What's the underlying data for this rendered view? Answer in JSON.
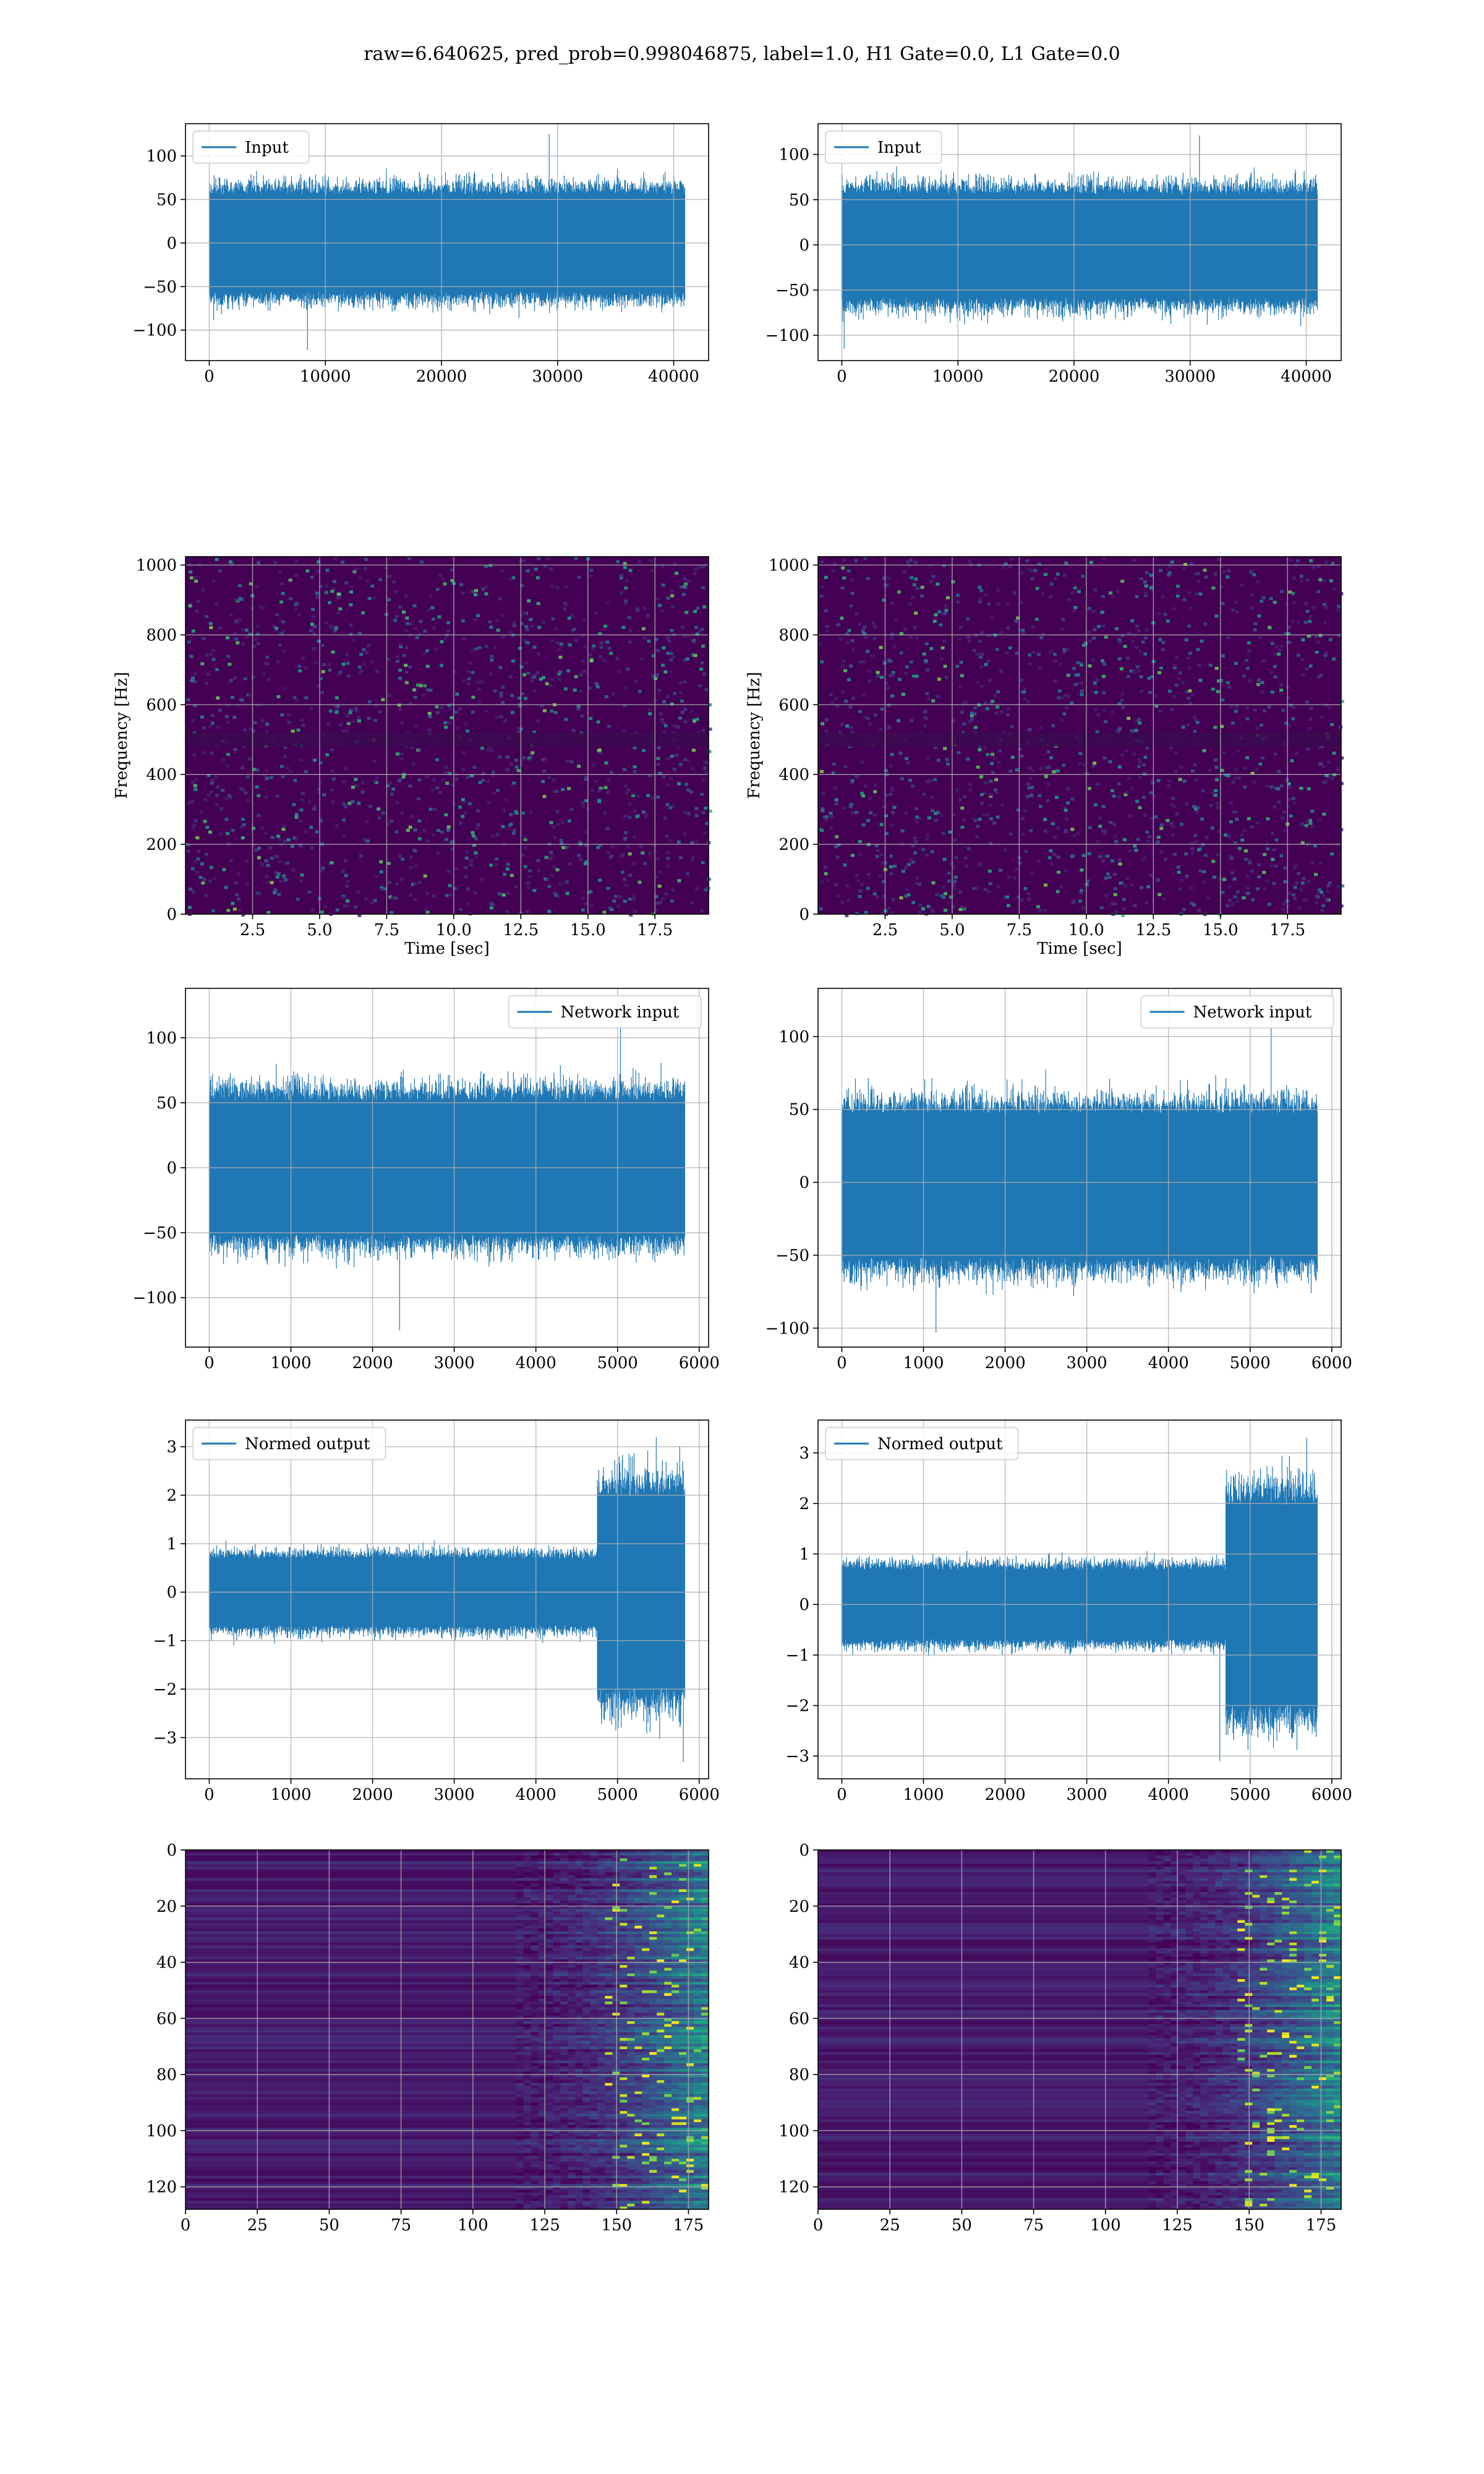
{
  "suptitle": "raw=6.640625, pred_prob=0.998046875, label=1.0, H1 Gate=0.0, L1 Gate=0.0",
  "colors": {
    "line": "#1f77b4",
    "viridis_dark": "#440154",
    "grid": "#b0b0b0",
    "frame": "#000000"
  },
  "chart_data": [
    {
      "id": "input-left",
      "type": "line",
      "legend_loc": "upper left",
      "series": [
        {
          "name": "Input",
          "n": 40960,
          "y_max": 125,
          "y_min": -123,
          "envelope": [
            65,
            -65
          ]
        }
      ],
      "xlim": [
        -2048,
        43008
      ],
      "ylim": [
        -135,
        137
      ],
      "xticks": [
        0,
        10000,
        20000,
        30000,
        40000
      ],
      "yticks": [
        -100,
        -50,
        0,
        50,
        100
      ],
      "xlabel": "",
      "ylabel": "",
      "grid": true
    },
    {
      "id": "input-right",
      "type": "line",
      "legend_loc": "upper left",
      "series": [
        {
          "name": "Input",
          "n": 40960,
          "y_max": 121,
          "y_min": -115,
          "envelope": [
            65,
            -68
          ]
        }
      ],
      "xlim": [
        -2048,
        43008
      ],
      "ylim": [
        -128,
        134
      ],
      "xticks": [
        0,
        10000,
        20000,
        30000,
        40000
      ],
      "yticks": [
        -100,
        -50,
        0,
        50,
        100
      ],
      "xlabel": "",
      "ylabel": "",
      "grid": true
    },
    {
      "id": "spectrogram-left",
      "type": "heatmap",
      "colormap": "viridis",
      "xlim": [
        0,
        19.5
      ],
      "ylim": [
        0,
        1024
      ],
      "xticks": [
        2.5,
        5.0,
        7.5,
        10.0,
        12.5,
        15.0,
        17.5
      ],
      "yticks": [
        0,
        200,
        400,
        600,
        800,
        1000
      ],
      "xlabel": "Time [sec]",
      "ylabel": "Frequency [Hz]",
      "grid": true
    },
    {
      "id": "spectrogram-right",
      "type": "heatmap",
      "colormap": "viridis",
      "xlim": [
        0,
        19.5
      ],
      "ylim": [
        0,
        1024
      ],
      "xticks": [
        2.5,
        5.0,
        7.5,
        10.0,
        12.5,
        15.0,
        17.5
      ],
      "yticks": [
        0,
        200,
        400,
        600,
        800,
        1000
      ],
      "xlabel": "Time [sec]",
      "ylabel": "Frequency [Hz]",
      "grid": true
    },
    {
      "id": "network-left",
      "type": "line",
      "legend_loc": "upper right",
      "series": [
        {
          "name": "Network input",
          "n": 5824,
          "y_max": 115,
          "y_min": -125,
          "envelope": [
            60,
            -60
          ]
        }
      ],
      "xlim": [
        -291,
        6115
      ],
      "ylim": [
        -138,
        138
      ],
      "xticks": [
        0,
        1000,
        2000,
        3000,
        4000,
        5000,
        6000
      ],
      "yticks": [
        -100,
        -50,
        0,
        50,
        100
      ],
      "xlabel": "",
      "ylabel": "",
      "grid": true
    },
    {
      "id": "network-right",
      "type": "line",
      "legend_loc": "upper right",
      "series": [
        {
          "name": "Network input",
          "n": 5824,
          "y_max": 122,
          "y_min": -103,
          "envelope": [
            55,
            -60
          ]
        }
      ],
      "xlim": [
        -291,
        6115
      ],
      "ylim": [
        -113,
        133
      ],
      "xticks": [
        0,
        1000,
        2000,
        3000,
        4000,
        5000,
        6000
      ],
      "yticks": [
        -100,
        -50,
        0,
        50,
        100
      ],
      "xlabel": "",
      "ylabel": "",
      "grid": true
    },
    {
      "id": "normed-left",
      "type": "line",
      "legend_loc": "upper left",
      "series": [
        {
          "name": "Normed output",
          "n": 5824,
          "y_max": 3.2,
          "y_min": -3.5,
          "envelope": [
            0.8,
            -0.8
          ],
          "burst_start": 4750,
          "burst_envelope": [
            2.3,
            -2.3
          ]
        }
      ],
      "xlim": [
        -291,
        6115
      ],
      "ylim": [
        -3.85,
        3.55
      ],
      "xticks": [
        0,
        1000,
        2000,
        3000,
        4000,
        5000,
        6000
      ],
      "yticks": [
        -3,
        -2,
        -1,
        0,
        1,
        2,
        3
      ],
      "xlabel": "",
      "ylabel": "",
      "grid": true
    },
    {
      "id": "normed-right",
      "type": "line",
      "legend_loc": "upper left",
      "series": [
        {
          "name": "Normed output",
          "n": 5824,
          "y_max": 3.3,
          "y_min": -3.1,
          "envelope": [
            0.8,
            -0.8
          ],
          "burst_start": 4700,
          "burst_envelope": [
            2.3,
            -2.3
          ]
        }
      ],
      "xlim": [
        -291,
        6115
      ],
      "ylim": [
        -3.45,
        3.65
      ],
      "xticks": [
        0,
        1000,
        2000,
        3000,
        4000,
        5000,
        6000
      ],
      "yticks": [
        -3,
        -2,
        -1,
        0,
        1,
        2,
        3
      ],
      "xlabel": "",
      "ylabel": "",
      "grid": true
    },
    {
      "id": "features-left",
      "type": "heatmap",
      "colormap": "viridis",
      "y_inverted": true,
      "xlim": [
        0,
        182
      ],
      "ylim": [
        128,
        0
      ],
      "xticks": [
        0,
        25,
        50,
        75,
        100,
        125,
        150,
        175
      ],
      "yticks": [
        0,
        20,
        40,
        60,
        80,
        100,
        120
      ],
      "xlabel": "",
      "ylabel": "",
      "grid": true
    },
    {
      "id": "features-right",
      "type": "heatmap",
      "colormap": "viridis",
      "y_inverted": true,
      "xlim": [
        0,
        182
      ],
      "ylim": [
        128,
        0
      ],
      "xticks": [
        0,
        25,
        50,
        75,
        100,
        125,
        150,
        175
      ],
      "yticks": [
        0,
        20,
        40,
        60,
        80,
        100,
        120
      ],
      "xlabel": "",
      "ylabel": "",
      "grid": true
    }
  ]
}
